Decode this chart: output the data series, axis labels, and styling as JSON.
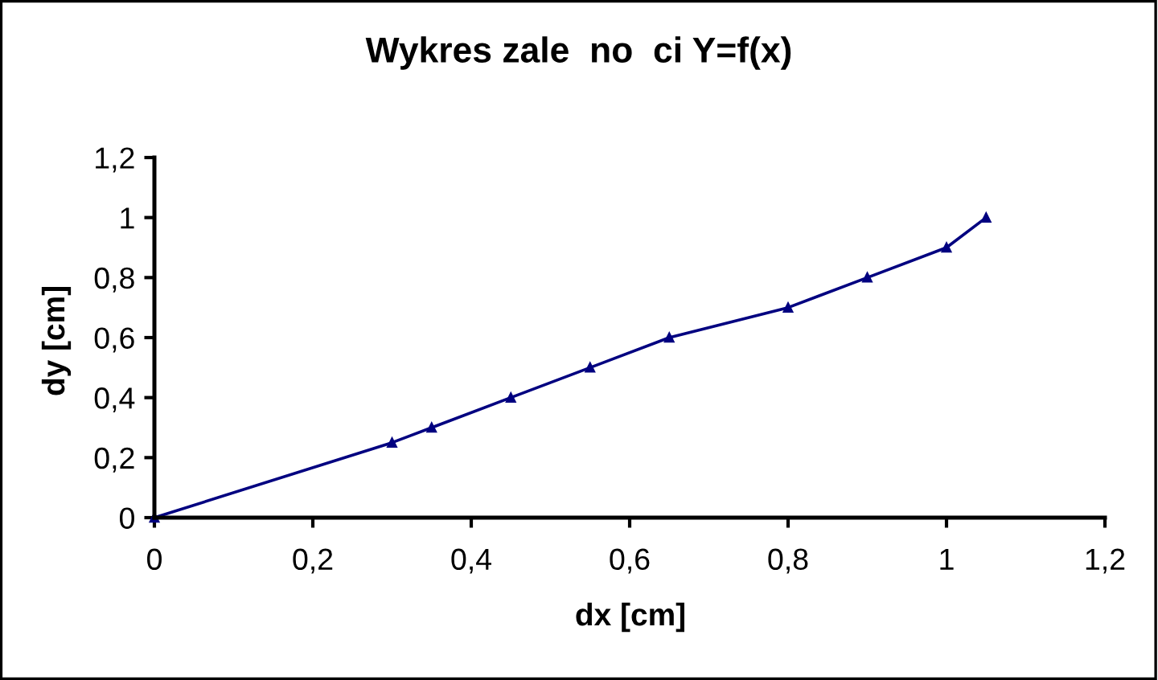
{
  "chart_data": {
    "type": "line",
    "title": "Wykres zale  no  ci Y=f(x)",
    "xlabel": "dx [cm]",
    "ylabel": "dy [cm]",
    "x": [
      0,
      0.3,
      0.35,
      0.45,
      0.55,
      0.65,
      0.8,
      0.9,
      1.0,
      1.05
    ],
    "series": [
      {
        "color": "#000080",
        "values": [
          0,
          0.25,
          0.3,
          0.4,
          0.5,
          0.6,
          0.7,
          0.8,
          0.9,
          1.0
        ]
      }
    ],
    "xlim": [
      0,
      1.2
    ],
    "ylim": [
      0,
      1.2
    ],
    "xticks": [
      0,
      {
        "value": 0.2,
        "label": "0,2"
      },
      {
        "value": 0.4,
        "label": "0,4"
      },
      {
        "value": 0.6,
        "label": "0,6"
      },
      {
        "value": 0.8,
        "label": "0,8"
      },
      1,
      {
        "value": 1.2,
        "label": "1,2"
      }
    ],
    "yticks": [
      0,
      {
        "value": 0.2,
        "label": "0,2"
      },
      {
        "value": 0.4,
        "label": "0,4"
      },
      {
        "value": 0.6,
        "label": "0,6"
      },
      {
        "value": 0.8,
        "label": "0,8"
      },
      1,
      {
        "value": 1.2,
        "label": "1,2"
      }
    ],
    "grid": false,
    "legend": false,
    "marker": "triangle",
    "line_style": "solid"
  }
}
